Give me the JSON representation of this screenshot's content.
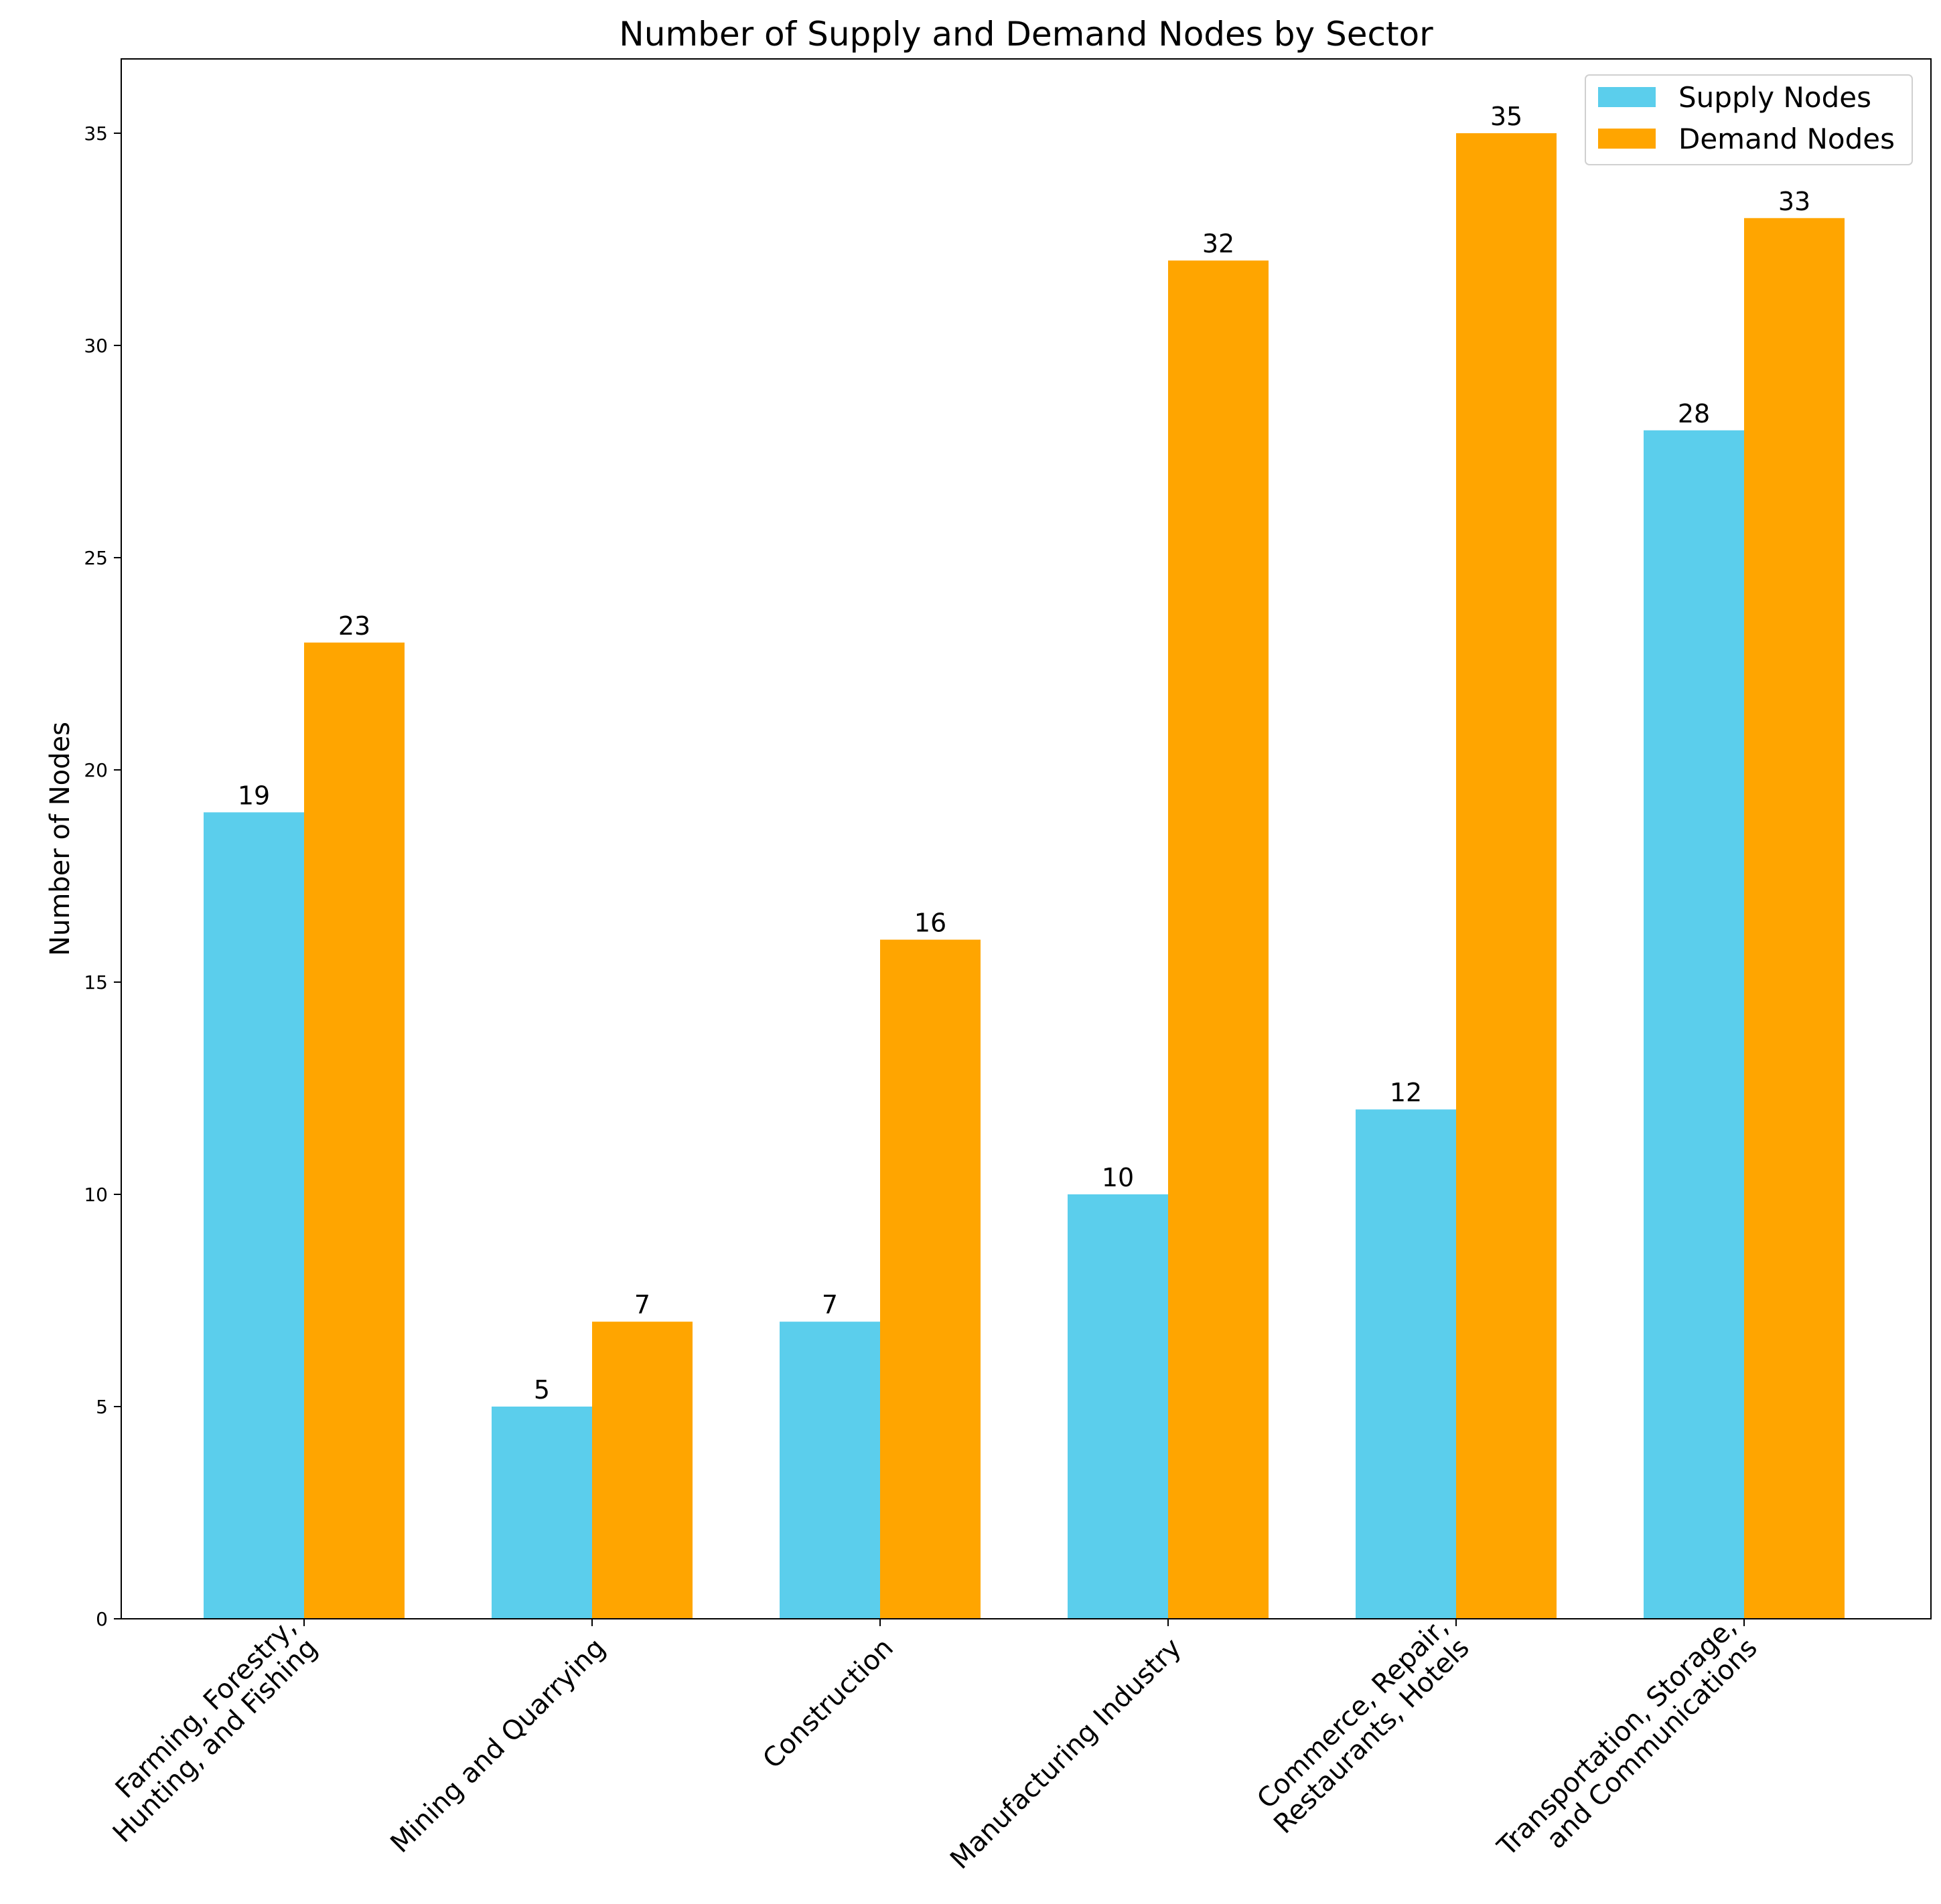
{
  "chart_data": {
    "type": "bar",
    "title": "Number of Supply and Demand Nodes by Sector",
    "xlabel": "",
    "ylabel": "Number of Nodes",
    "ylim": [
      0,
      36.75
    ],
    "yticks": [
      "0",
      "5",
      "10",
      "15",
      "20",
      "25",
      "30",
      "35"
    ],
    "categories": [
      [
        "Farming, Forestry,",
        "Hunting, and Fishing"
      ],
      [
        "Mining and Quarrying"
      ],
      [
        "Construction"
      ],
      [
        "Manufacturing Industry"
      ],
      [
        "Commerce, Repair,",
        "Restaurants, Hotels"
      ],
      [
        "Transportation, Storage,",
        "and Communications"
      ]
    ],
    "series": [
      {
        "name": "Supply Nodes",
        "color": "#5BCEEC",
        "values": [
          19,
          5,
          7,
          10,
          12,
          28
        ],
        "labels": [
          "19",
          "5",
          "7",
          "10",
          "12",
          "28"
        ]
      },
      {
        "name": "Demand Nodes",
        "color": "#FFA500",
        "values": [
          23,
          7,
          16,
          32,
          35,
          33
        ],
        "labels": [
          "23",
          "7",
          "16",
          "32",
          "35",
          "33"
        ]
      }
    ],
    "legend": "top-right",
    "grid": false
  }
}
